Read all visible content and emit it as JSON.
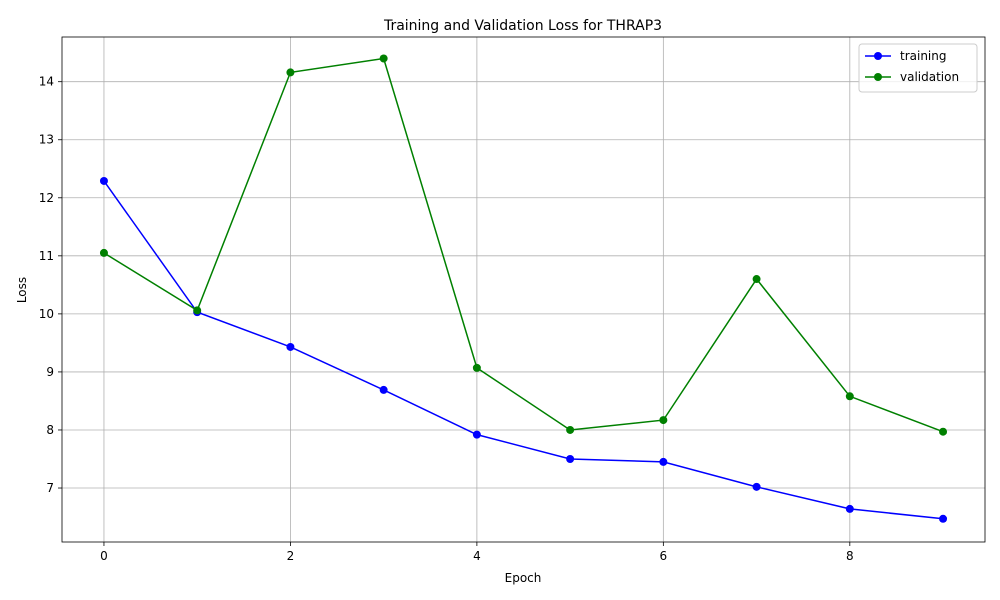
{
  "figure": {
    "title": "Training and Validation Loss for THRAP3"
  },
  "chart_data": {
    "type": "line",
    "title": "Training and Validation Loss for THRAP3",
    "xlabel": "Epoch",
    "ylabel": "Loss",
    "x": [
      0,
      1,
      2,
      3,
      4,
      5,
      6,
      7,
      8,
      9
    ],
    "xlim": [
      -0.45,
      9.45
    ],
    "ylim": [
      6.07,
      14.77
    ],
    "xticks": [
      0,
      2,
      4,
      6,
      8
    ],
    "yticks": [
      7,
      8,
      9,
      10,
      11,
      12,
      13,
      14
    ],
    "grid": true,
    "legend_position": "top-right",
    "series": [
      {
        "name": "training",
        "color": "#0000ff",
        "marker": "circle",
        "values": [
          12.29,
          10.03,
          9.43,
          8.69,
          7.92,
          7.5,
          7.45,
          7.02,
          6.64,
          6.47
        ]
      },
      {
        "name": "validation",
        "color": "#008000",
        "marker": "circle",
        "values": [
          11.05,
          10.06,
          14.16,
          14.4,
          9.07,
          8.0,
          8.17,
          10.6,
          8.58,
          7.97
        ]
      }
    ]
  }
}
